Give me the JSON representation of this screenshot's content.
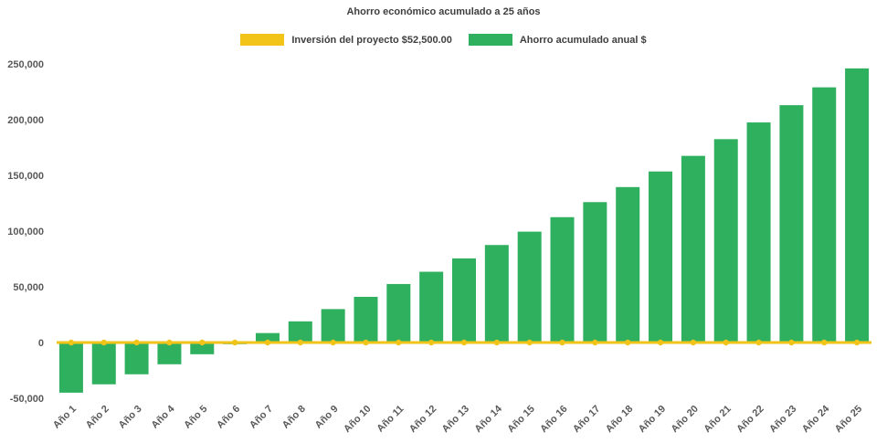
{
  "colors": {
    "investment": "#f2c318",
    "savings": "#2eb05e",
    "axis_text": "#595959",
    "title_text": "#3f3f3f",
    "background": "#ffffff"
  },
  "chart_data": {
    "type": "bar",
    "title": "Ahorro económico acumulado a 25 años",
    "categories": [
      "Año 1",
      "Año 2",
      "Año 3",
      "Año 4",
      "Año 5",
      "Año 6",
      "Año 7",
      "Año 8",
      "Año 9",
      "Año 10",
      "Año 11",
      "Año 12",
      "Año 13",
      "Año 14",
      "Año 15",
      "Año 16",
      "Año 17",
      "Año 18",
      "Año 19",
      "Año 20",
      "Año 21",
      "Año 22",
      "Año 23",
      "Año 24",
      "Año 25"
    ],
    "series": [
      {
        "name": "Inversión del proyecto $52,500.00",
        "type": "line",
        "values": [
          0,
          0,
          0,
          0,
          0,
          0,
          0,
          0,
          0,
          0,
          0,
          0,
          0,
          0,
          0,
          0,
          0,
          0,
          0,
          0,
          0,
          0,
          0,
          0,
          0
        ]
      },
      {
        "name": "Ahorro acumulado anual $",
        "type": "bar",
        "values": [
          -45000,
          -37500,
          -28500,
          -19500,
          -10500,
          -1500,
          8500,
          19000,
          30000,
          41000,
          52500,
          63500,
          75500,
          87500,
          99500,
          112500,
          126000,
          139500,
          153500,
          167500,
          182500,
          197500,
          213000,
          229000,
          246000
        ]
      }
    ],
    "xlabel": "",
    "ylabel": "",
    "ylim": [
      -50000,
      250000
    ],
    "y_ticks": [
      -50000,
      0,
      50000,
      100000,
      150000,
      200000,
      250000
    ],
    "grid": false,
    "legend_position": "top"
  }
}
